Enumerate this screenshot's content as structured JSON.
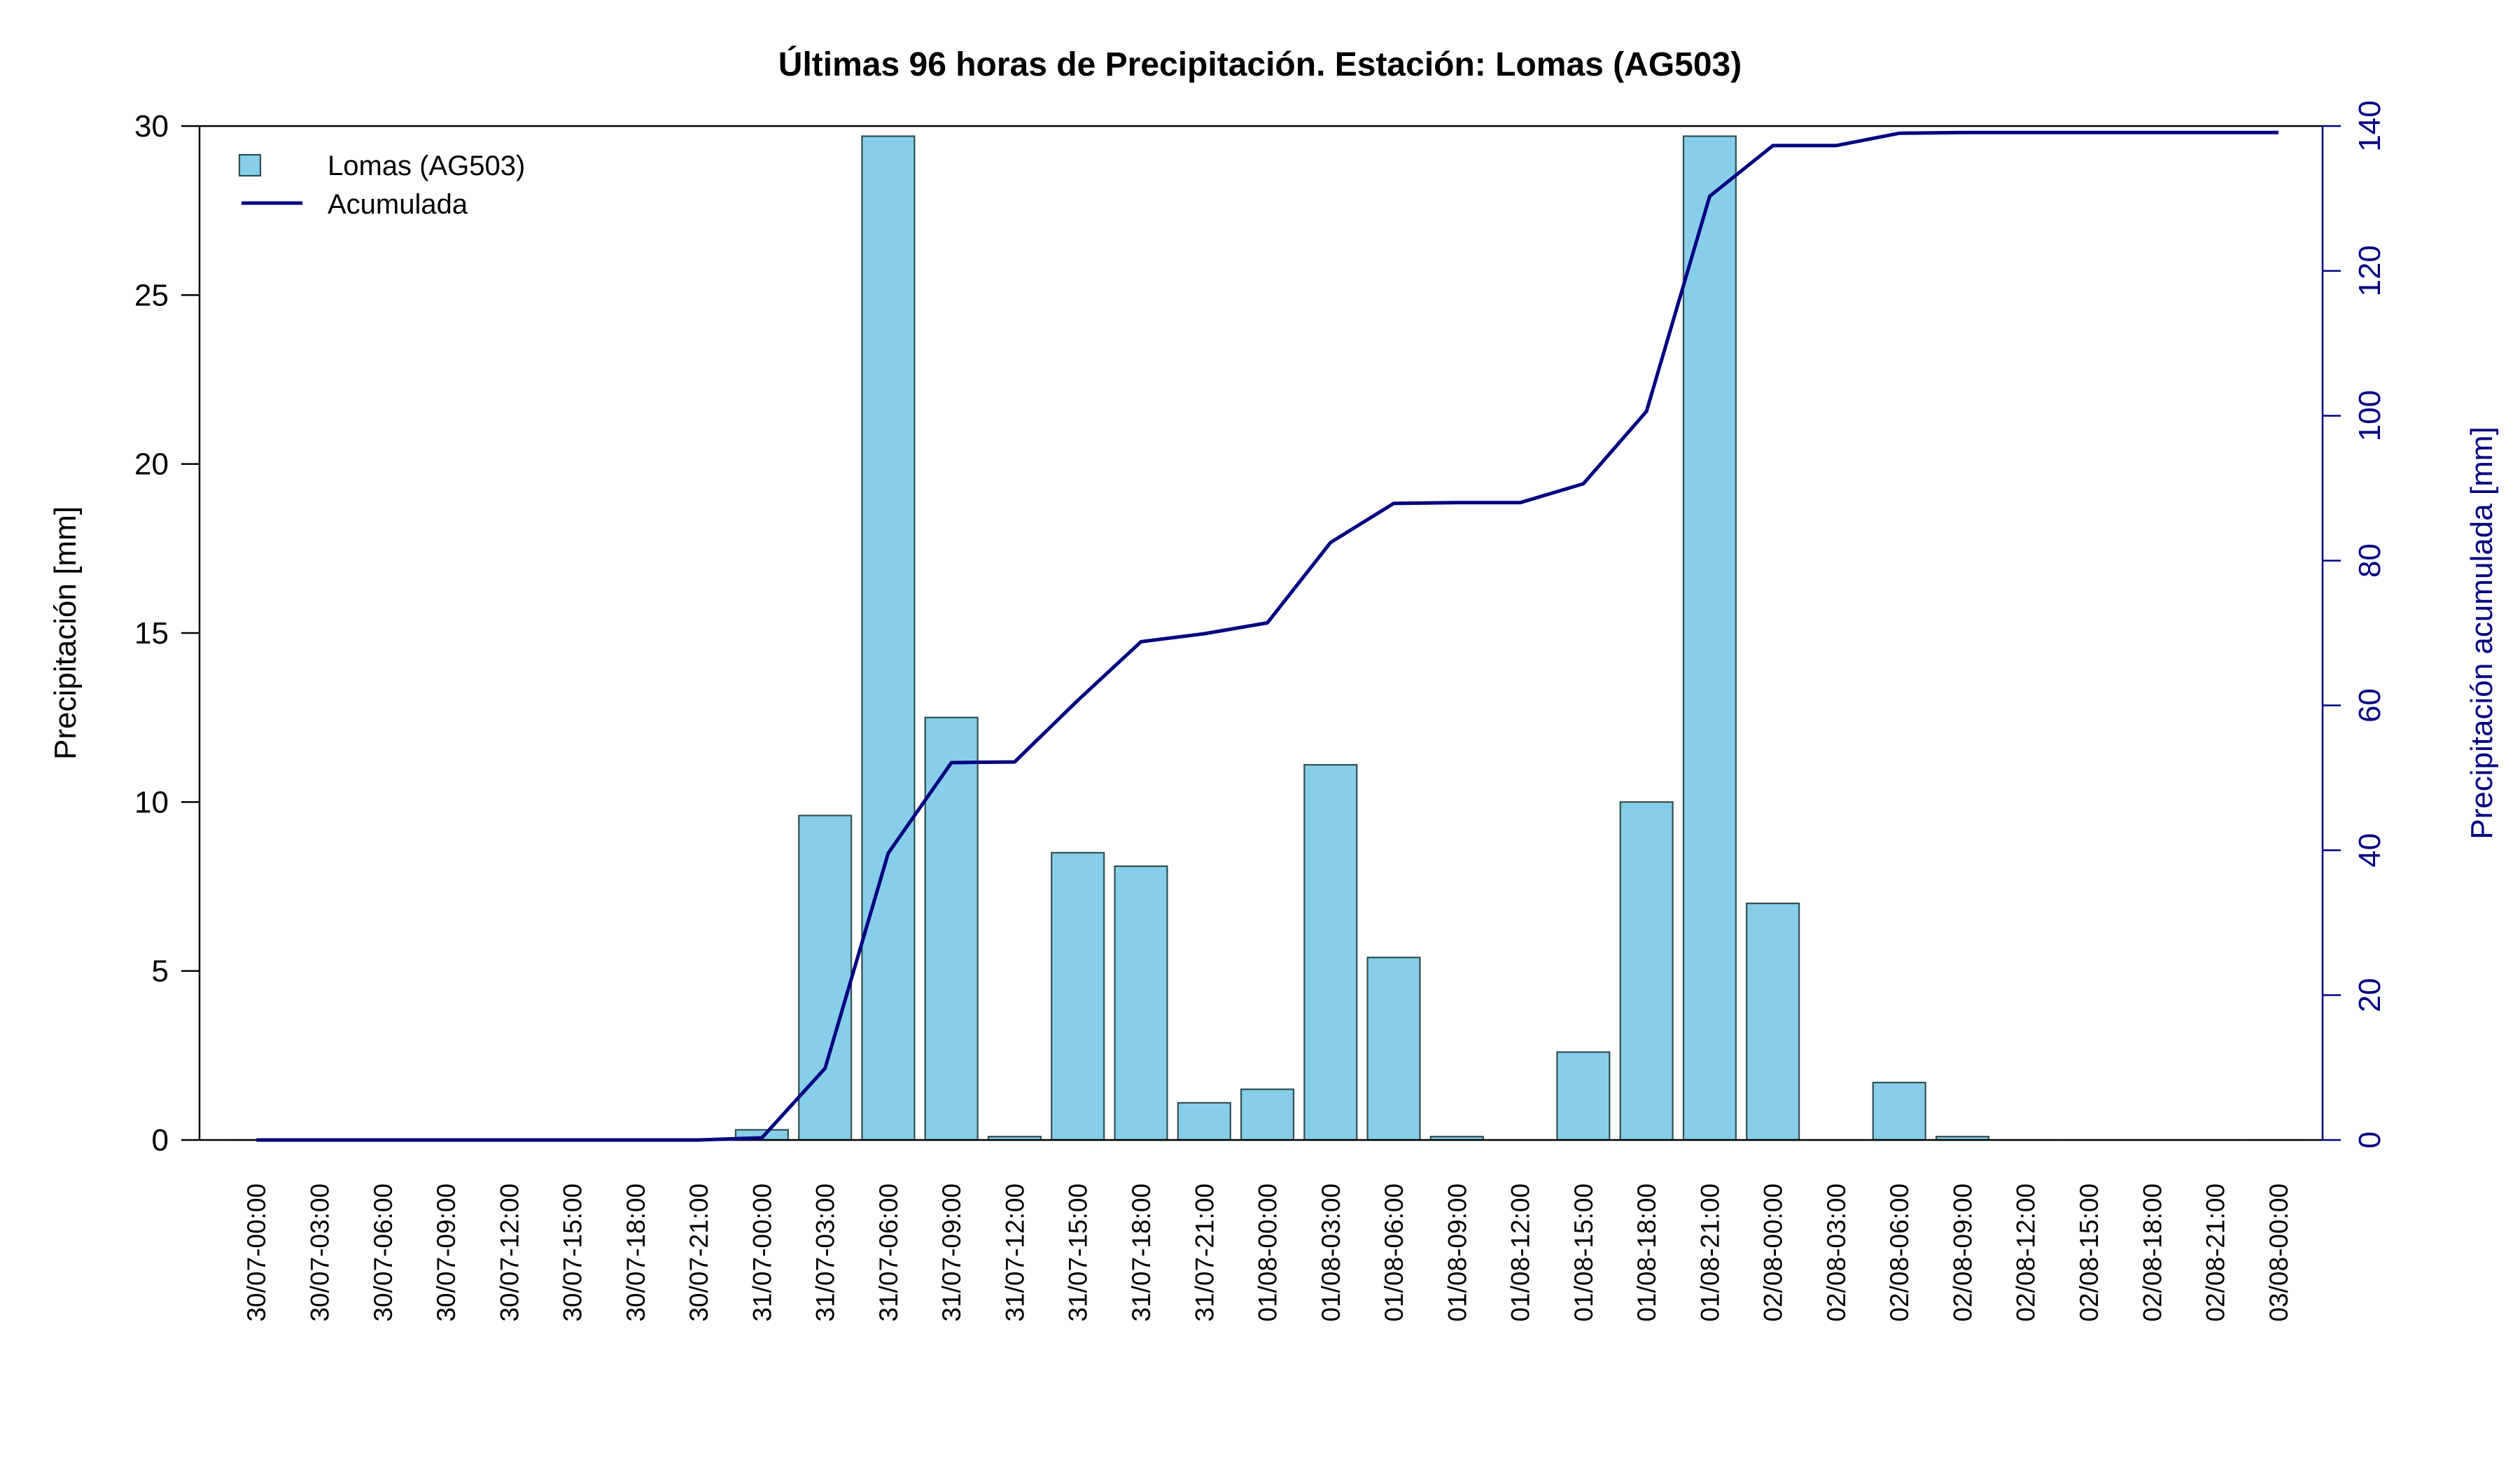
{
  "chart_data": {
    "type": "bar",
    "title": "Últimas 96 horas de Precipitación. Estación: Lomas (AG503)",
    "ylabel": "Precipitación [mm]",
    "y2label": "Precipitación acumulada [mm]",
    "xlabel": "",
    "ylim": [
      0,
      30
    ],
    "y2lim": [
      0,
      140
    ],
    "yticks": [
      0,
      5,
      10,
      15,
      20,
      25,
      30
    ],
    "y2ticks": [
      0,
      20,
      40,
      60,
      80,
      100,
      120,
      140
    ],
    "grid": false,
    "legend": {
      "position": "top-left",
      "entries": [
        "Lomas (AG503)",
        "Acumulada"
      ]
    },
    "categories": [
      "30/07-00:00",
      "30/07-03:00",
      "30/07-06:00",
      "30/07-09:00",
      "30/07-12:00",
      "30/07-15:00",
      "30/07-18:00",
      "30/07-21:00",
      "31/07-00:00",
      "31/07-03:00",
      "31/07-06:00",
      "31/07-09:00",
      "31/07-12:00",
      "31/07-15:00",
      "31/07-18:00",
      "31/07-21:00",
      "01/08-00:00",
      "01/08-03:00",
      "01/08-06:00",
      "01/08-09:00",
      "01/08-12:00",
      "01/08-15:00",
      "01/08-18:00",
      "01/08-21:00",
      "02/08-00:00",
      "02/08-03:00",
      "02/08-06:00",
      "02/08-09:00",
      "02/08-12:00",
      "02/08-15:00",
      "02/08-18:00",
      "02/08-21:00",
      "03/08-00:00"
    ],
    "series": [
      {
        "name": "Lomas (AG503)",
        "type": "bar",
        "axis": "left",
        "color": "#87ceeb",
        "values": [
          0,
          0,
          0,
          0,
          0,
          0,
          0,
          0,
          0.3,
          9.6,
          29.7,
          12.5,
          0.1,
          8.5,
          8.1,
          1.1,
          1.5,
          11.1,
          5.4,
          0.1,
          0,
          2.6,
          10.0,
          29.7,
          7.0,
          0,
          1.7,
          0.1,
          0,
          0,
          0,
          0,
          0
        ]
      },
      {
        "name": "Acumulada",
        "type": "line",
        "axis": "right",
        "color": "#000080",
        "values": [
          0,
          0,
          0,
          0,
          0,
          0,
          0,
          0,
          0.3,
          9.9,
          39.6,
          52.1,
          52.2,
          60.7,
          68.8,
          69.9,
          71.4,
          82.5,
          87.9,
          88.0,
          88.0,
          90.6,
          100.6,
          130.3,
          137.3,
          137.3,
          139.0,
          139.1,
          139.1,
          139.1,
          139.1,
          139.1,
          139.1
        ]
      }
    ],
    "colors": {
      "bar_fill": "#87ceeb",
      "bar_stroke": "#2f4f4f",
      "line": "#000080",
      "right_axis": "#000080",
      "axis": "#000000"
    }
  }
}
